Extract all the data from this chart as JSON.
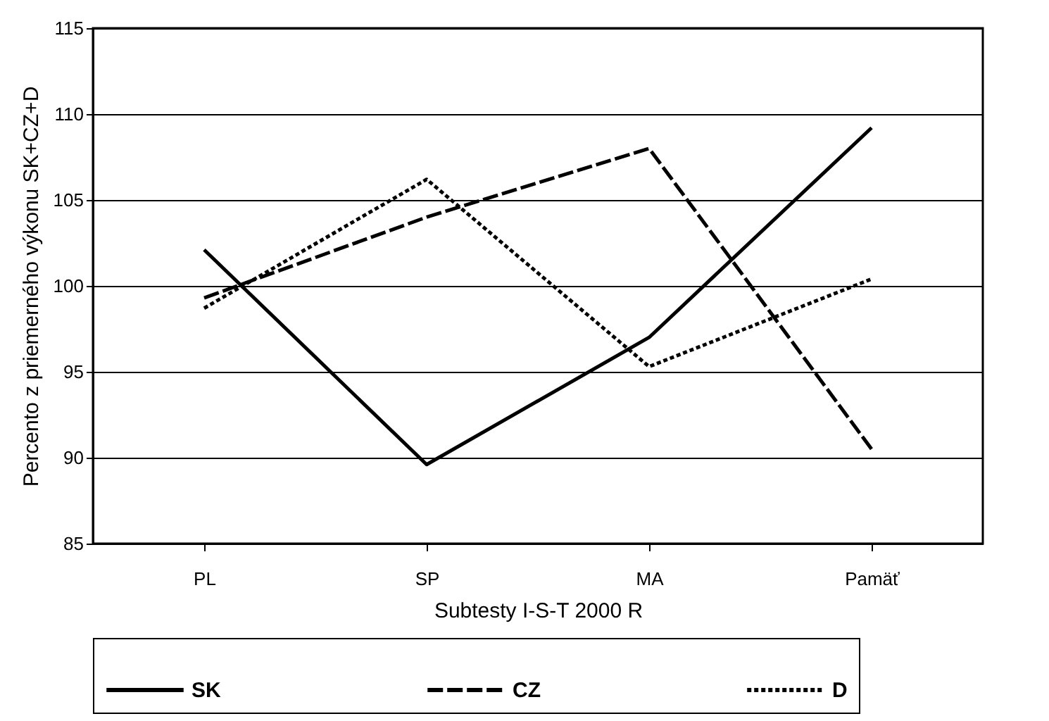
{
  "chart_data": {
    "type": "line",
    "xlabel": "Subtesty I-S-T 2000 R",
    "ylabel": "Percento z priemerného výkonu SK+CZ+D",
    "categories": [
      "PL",
      "SP",
      "MA",
      "Pamäť"
    ],
    "series": [
      {
        "name": "SK",
        "color": "#000000",
        "line_style": "solid",
        "values": [
          102.1,
          89.6,
          97.0,
          109.2
        ]
      },
      {
        "name": "CZ",
        "color": "#000000",
        "line_style": "dashed",
        "values": [
          99.3,
          104.0,
          108.0,
          90.5
        ]
      },
      {
        "name": "D",
        "color": "#000000",
        "line_style": "dotted",
        "values": [
          98.7,
          106.2,
          95.3,
          100.4
        ]
      }
    ],
    "ylim": [
      85,
      115
    ],
    "yticks": [
      85,
      90,
      95,
      100,
      105,
      110,
      115
    ],
    "grid": "y",
    "legend": "bottom",
    "marker": "none"
  }
}
